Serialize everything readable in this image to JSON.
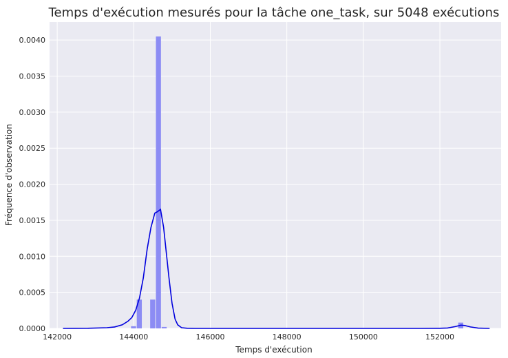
{
  "chart_data": {
    "type": "bar",
    "title": "Temps d'exécution mesurés pour la tâche one_task, sur 5048 exécutions",
    "xlabel": "Temps d'exécution",
    "ylabel": "Fréquence d'observation",
    "xlim": [
      141800,
      153600
    ],
    "ylim": [
      0,
      0.00425
    ],
    "xticks": [
      142000,
      144000,
      146000,
      148000,
      150000,
      152000
    ],
    "xtick_labels": [
      "142000",
      "144000",
      "146000",
      "148000",
      "150000",
      "152000"
    ],
    "yticks": [
      0,
      0.0005,
      0.001,
      0.0015,
      0.002,
      0.0025,
      0.003,
      0.0035,
      0.004
    ],
    "ytick_labels": [
      "0.0000",
      "0.0005",
      "0.0010",
      "0.0015",
      "0.0020",
      "0.0025",
      "0.0030",
      "0.0035",
      "0.0040"
    ],
    "grid": true,
    "background": "#eaeaf2",
    "bar_color": "#8c8cf4",
    "line_color": "#0000dd",
    "histogram": [
      {
        "x0": 143920,
        "x1": 144070,
        "value": 3e-05
      },
      {
        "x0": 144070,
        "x1": 144220,
        "value": 0.0004
      },
      {
        "x0": 144420,
        "x1": 144570,
        "value": 0.0004
      },
      {
        "x0": 144570,
        "x1": 144720,
        "value": 0.00405
      },
      {
        "x0": 144720,
        "x1": 144870,
        "value": 2e-05
      },
      {
        "x0": 152470,
        "x1": 152620,
        "value": 8e-05
      }
    ],
    "kde": {
      "x": [
        142150,
        142800,
        143300,
        143500,
        143700,
        143850,
        143950,
        144050,
        144150,
        144250,
        144350,
        144450,
        144550,
        144620,
        144700,
        144780,
        144850,
        144920,
        145000,
        145080,
        145150,
        145250,
        145400,
        145600,
        146500,
        150000,
        151500,
        152000,
        152200,
        152400,
        152550,
        152650,
        152800,
        153000,
        153300
      ],
      "y": [
        0,
        2e-06,
        1e-05,
        2e-05,
        5e-05,
        0.0001,
        0.00015,
        0.00025,
        0.00042,
        0.0007,
        0.0011,
        0.0014,
        0.0016,
        0.00162,
        0.00165,
        0.0014,
        0.00105,
        0.0007,
        0.00035,
        0.00013,
        5e-05,
        1e-05,
        2e-06,
        0,
        0,
        0,
        0,
        2e-06,
        6e-06,
        2.5e-05,
        4.5e-05,
        4e-05,
        2e-05,
        4e-06,
        0
      ]
    }
  }
}
